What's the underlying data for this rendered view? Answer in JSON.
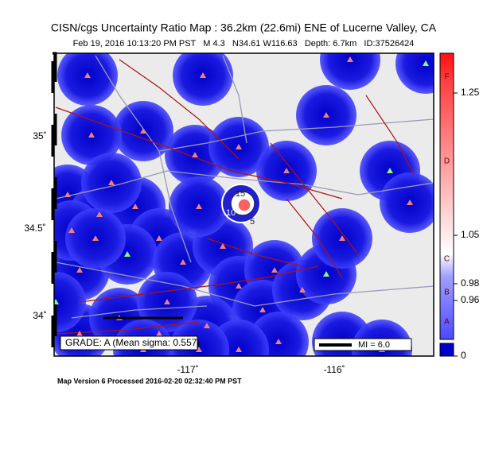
{
  "map": {
    "title": "CISN/cgs Uncertainty Ratio Map : 36.2km (22.6mi) ENE of Lucerne Valley, CA",
    "subtitle": "Feb 19, 2016 10:13:20 PM PST   M 4.3   N34.61 W116.63   Depth: 6.7km   ID:37526424",
    "lat_labels": [
      "35˚",
      "34.5˚",
      "34˚"
    ],
    "lon_labels": [
      "-117˚",
      "-116˚"
    ],
    "grade": "GRADE: A (Mean sigma: 0.557)",
    "scale_label": "MI = 6.0",
    "contour_labels": [
      "15",
      "10",
      "5"
    ],
    "colorbar": {
      "labels": [
        "1.25",
        "1.05",
        "0.98",
        "0.96",
        "0"
      ],
      "grades": [
        "F",
        "D",
        "C",
        "B",
        "A"
      ]
    },
    "footer": "Map Version 6 Processed 2016-02-20 02:32:40 PM PST"
  }
}
